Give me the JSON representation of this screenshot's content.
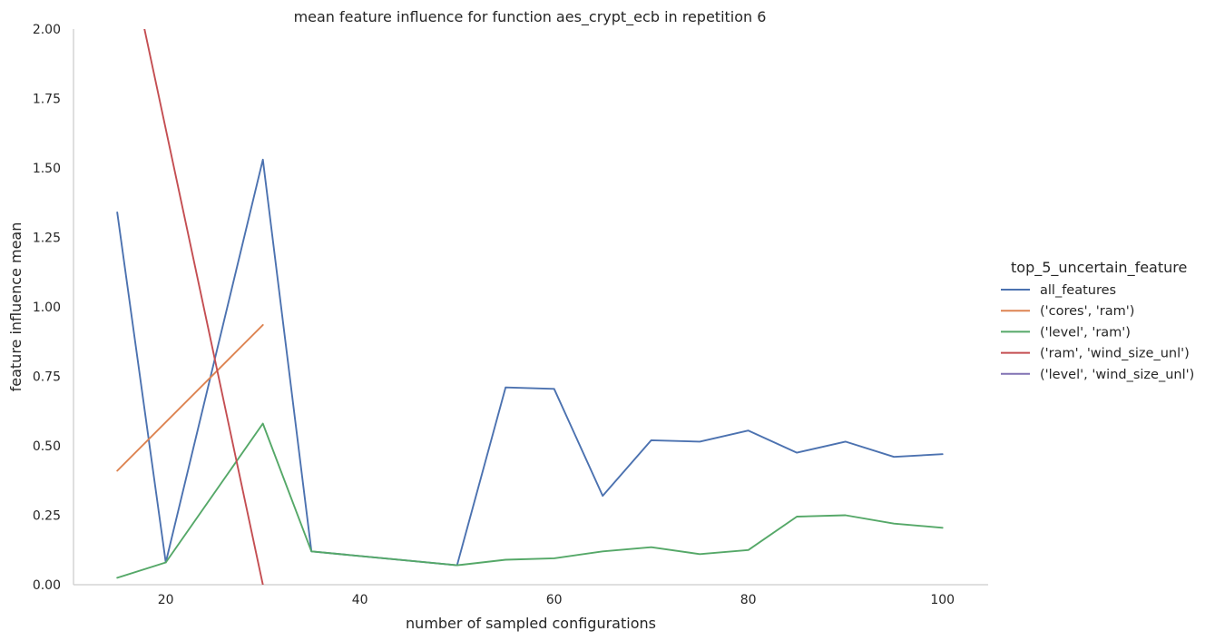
{
  "chart_data": {
    "type": "line",
    "title": "mean feature influence for function aes_crypt_ecb in repetition 6",
    "xlabel": "number of sampled configurations",
    "ylabel": "feature influence mean",
    "xlim": [
      10.5,
      104.7
    ],
    "ylim": [
      0,
      2.0
    ],
    "xticks": [
      "20",
      "40",
      "60",
      "80",
      "100"
    ],
    "xtick_values": [
      20,
      40,
      60,
      80,
      100
    ],
    "yticks": [
      "0.00",
      "0.25",
      "0.50",
      "0.75",
      "1.00",
      "1.25",
      "1.50",
      "1.75",
      "2.00"
    ],
    "ytick_values": [
      0,
      0.25,
      0.5,
      0.75,
      1.0,
      1.25,
      1.5,
      1.75,
      2.0
    ],
    "grid": false,
    "legend": {
      "title": "top_5_uncertain_feature",
      "placement": "right"
    },
    "series": [
      {
        "name": "all_features",
        "color": "#4c72b0",
        "x": [
          15,
          20,
          30,
          35,
          50,
          55,
          60,
          65,
          70,
          75,
          80,
          85,
          90,
          95,
          100
        ],
        "y": [
          1.34,
          0.08,
          1.53,
          0.12,
          0.07,
          0.71,
          0.705,
          0.32,
          0.52,
          0.515,
          0.555,
          0.475,
          0.515,
          0.46,
          0.47
        ]
      },
      {
        "name": "('cores', 'ram')",
        "color": "#dd8452",
        "x": [
          15,
          30
        ],
        "y": [
          0.41,
          0.935
        ]
      },
      {
        "name": "('level', 'ram')",
        "color": "#55a868",
        "x": [
          15,
          20,
          30,
          35,
          50,
          55,
          60,
          65,
          70,
          75,
          80,
          85,
          90,
          95,
          100
        ],
        "y": [
          0.025,
          0.08,
          0.58,
          0.12,
          0.07,
          0.09,
          0.095,
          0.12,
          0.135,
          0.11,
          0.125,
          0.245,
          0.25,
          0.22,
          0.205
        ]
      },
      {
        "name": "('ram', 'wind_size_unl')",
        "color": "#c44e52",
        "x": [
          15,
          30
        ],
        "y": [
          2.46,
          0.0
        ]
      },
      {
        "name": "('level', 'wind_size_unl')",
        "color": "#8172b3",
        "x": [],
        "y": []
      }
    ]
  }
}
